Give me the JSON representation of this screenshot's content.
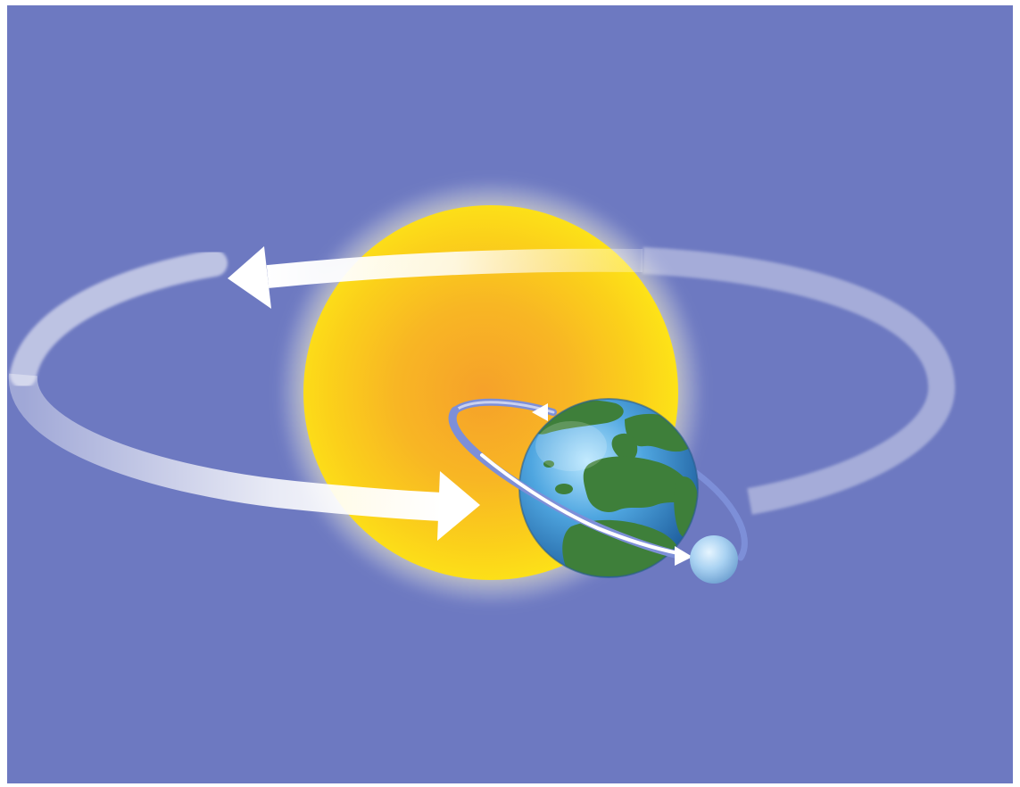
{
  "diagram": {
    "bodies": [
      {
        "name": "sun",
        "color": "#f7c21f"
      },
      {
        "name": "earth",
        "color": "#3f8fcf"
      },
      {
        "name": "moon",
        "color": "#a9d2f2"
      }
    ],
    "orbits": [
      {
        "name": "earth-orbit-around-sun",
        "color": "#ffffff",
        "direction": "counterclockwise"
      },
      {
        "name": "moon-orbit-around-earth",
        "color": "#ffffff",
        "direction": "counterclockwise"
      }
    ],
    "colors": {
      "background": "#6a76bf",
      "frame": "#ffffff",
      "land": "#3e7f3a",
      "ocean": "#3f8fcf"
    }
  }
}
